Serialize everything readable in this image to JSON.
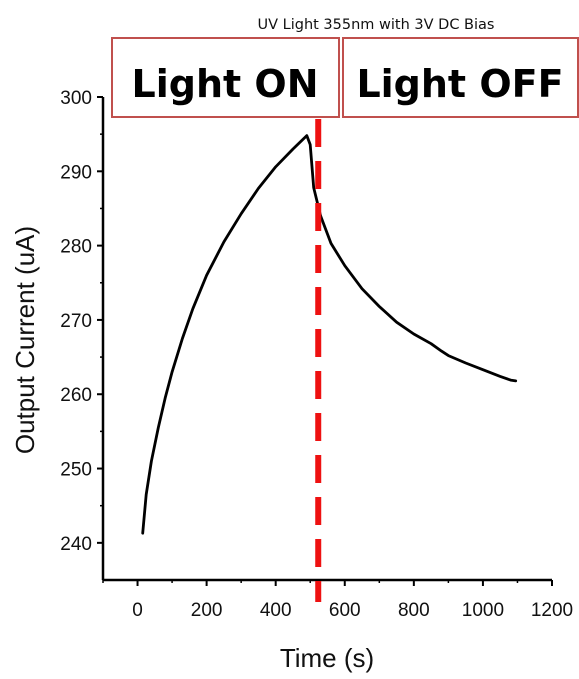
{
  "chart_data": {
    "type": "line",
    "title": "UV Light 355nm with 3V DC Bias",
    "xlabel": "Time (s)",
    "ylabel": "Output Current (uA)",
    "xlim": [
      -100,
      1200
    ],
    "ylim": [
      235,
      300
    ],
    "xticks": [
      0,
      200,
      400,
      600,
      800,
      1000,
      1200
    ],
    "yticks": [
      240,
      250,
      260,
      270,
      280,
      290,
      300
    ],
    "grid": false,
    "annotations": [
      {
        "text": "Light ON",
        "region": "left"
      },
      {
        "text": "Light OFF",
        "region": "right"
      }
    ],
    "divider": {
      "x": 500,
      "style": "dashed",
      "color": "#ee1111"
    },
    "series": [
      {
        "color": "#000000",
        "x": [
          15,
          25,
          40,
          60,
          80,
          100,
          130,
          160,
          200,
          250,
          300,
          350,
          400,
          450,
          490,
          500,
          510,
          530,
          560,
          600,
          650,
          700,
          750,
          800,
          850,
          880,
          900,
          950,
          1000,
          1050,
          1080,
          1095
        ],
        "y": [
          241.3,
          246.5,
          251.0,
          255.5,
          259.5,
          263.0,
          267.5,
          271.5,
          276.0,
          280.5,
          284.3,
          287.7,
          290.6,
          293.0,
          294.8,
          293.6,
          287.8,
          284.0,
          280.3,
          277.3,
          274.2,
          271.8,
          269.7,
          268.1,
          266.8,
          265.8,
          265.2,
          264.2,
          263.3,
          262.4,
          261.9,
          261.8
        ]
      }
    ],
    "colors": {
      "line": "#000000",
      "divider": "#ee1111",
      "box_border": "#c0504d"
    }
  }
}
